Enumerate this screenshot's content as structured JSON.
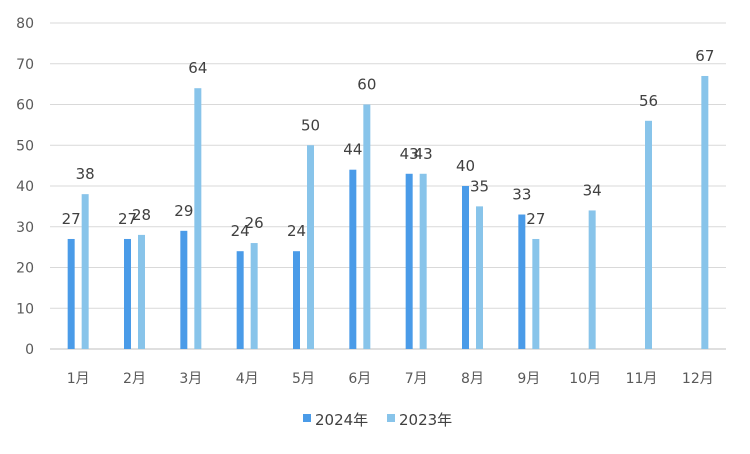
{
  "chart_data": {
    "type": "bar",
    "categories": [
      "1月",
      "2月",
      "3月",
      "4月",
      "5月",
      "6月",
      "7月",
      "8月",
      "9月",
      "10月",
      "11月",
      "12月"
    ],
    "series": [
      {
        "name": "2024年",
        "color": "#4a9be8",
        "values": [
          27,
          27,
          29,
          24,
          24,
          44,
          43,
          40,
          33,
          null,
          null,
          null
        ]
      },
      {
        "name": "2023年",
        "color": "#88c4ea",
        "values": [
          38,
          28,
          64,
          26,
          50,
          60,
          43,
          35,
          27,
          34,
          56,
          67
        ]
      }
    ],
    "ylim": [
      0,
      80
    ],
    "yticks": [
      0,
      10,
      20,
      30,
      40,
      50,
      60,
      70,
      80
    ],
    "grid": true,
    "legend_position": "bottom",
    "data_labels": true
  }
}
